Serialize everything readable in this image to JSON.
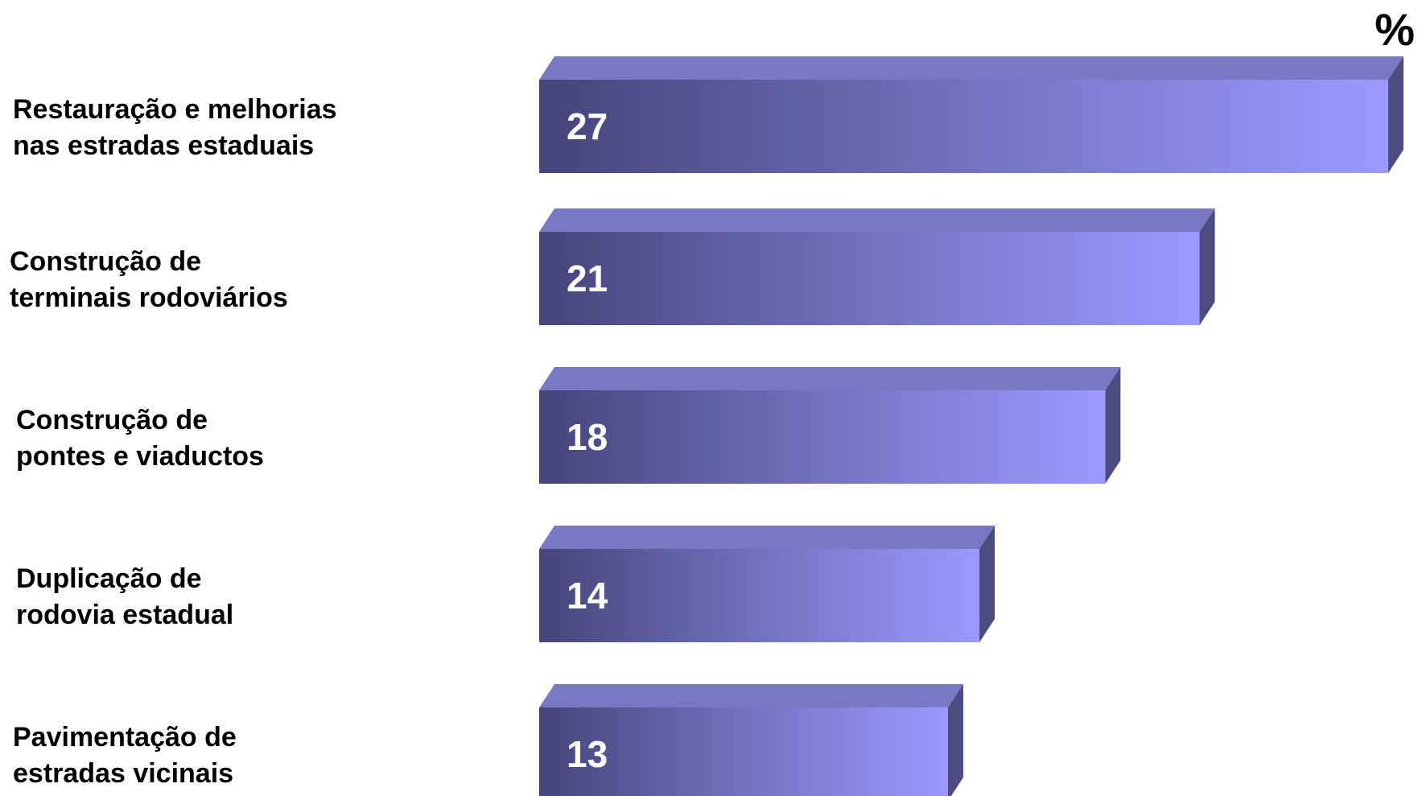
{
  "chart_data": {
    "type": "bar",
    "orientation": "horizontal",
    "unit_label": "%",
    "categories": [
      [
        "Restauração e melhorias",
        "nas estradas estaduais"
      ],
      [
        "Construção de",
        "terminais rodoviários"
      ],
      [
        "Construção de",
        "pontes e viaductos"
      ],
      [
        "Duplicação de",
        "rodovia estadual"
      ],
      [
        "Pavimentação de",
        "estradas vicinais"
      ]
    ],
    "values": [
      27,
      21,
      18,
      14,
      13
    ],
    "xlim": [
      0,
      27
    ],
    "grid": false,
    "legend": "none",
    "colors": {
      "bar_front_start": "#45457a",
      "bar_front_mid": "#7272c0",
      "bar_front_end": "#9a9aff",
      "bar_top": "#7878c4",
      "bar_side": "#4c4c80",
      "value_text": "#ffffff",
      "label_text": "#000000"
    }
  }
}
